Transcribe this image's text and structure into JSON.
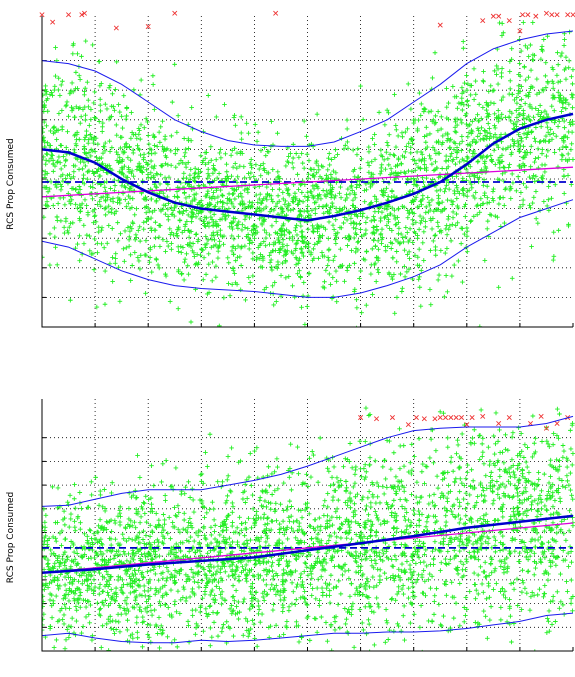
{
  "colors": {
    "inlier": "#22ee22",
    "outlier": "#ee3333",
    "band": "#1a1aee",
    "smooth": "#0000cc",
    "mean": "#0000cc",
    "fit": "#dd00dd"
  },
  "chart_data": [
    {
      "type": "scatter",
      "ylabel": "RCS Prop Consumed",
      "xlim": [
        0,
        10
      ],
      "ylim": [
        0,
        10
      ],
      "grid": true,
      "legend": "none",
      "x_ticks": [
        0,
        1,
        2,
        3,
        4,
        5,
        6,
        7,
        8,
        9,
        10
      ],
      "y_ticks": [
        1,
        2,
        3,
        4,
        5,
        6,
        7,
        8,
        9
      ],
      "point_count": 3000,
      "mean_line": 4.9,
      "fit_line": {
        "x": [
          0,
          10
        ],
        "y": [
          4.4,
          5.4
        ]
      },
      "smooth_curve": {
        "x": [
          0,
          0.5,
          1,
          1.5,
          2,
          2.5,
          3,
          3.5,
          4,
          4.5,
          5,
          5.5,
          6,
          6.5,
          7,
          7.5,
          8,
          8.5,
          9,
          9.5,
          10
        ],
        "y": [
          6.0,
          5.9,
          5.55,
          5.0,
          4.55,
          4.2,
          4.0,
          3.9,
          3.8,
          3.7,
          3.6,
          3.75,
          3.95,
          4.2,
          4.5,
          4.9,
          5.5,
          6.2,
          6.7,
          7.0,
          7.2
        ]
      },
      "upper_band": {
        "x": [
          0,
          0.5,
          1,
          1.5,
          2,
          2.5,
          3,
          3.5,
          4,
          4.5,
          5,
          5.5,
          6,
          6.5,
          7,
          7.5,
          8,
          8.5,
          9,
          9.5,
          10
        ],
        "y": [
          9.0,
          8.9,
          8.65,
          8.2,
          7.6,
          7.0,
          6.6,
          6.3,
          6.15,
          6.1,
          6.1,
          6.25,
          6.6,
          7.0,
          7.6,
          8.2,
          8.9,
          9.4,
          9.7,
          9.9,
          10.0
        ]
      },
      "lower_band": {
        "x": [
          0,
          0.5,
          1,
          1.5,
          2,
          2.5,
          3,
          3.5,
          4,
          4.5,
          5,
          5.5,
          6,
          6.5,
          7,
          7.5,
          8,
          8.5,
          9,
          9.5,
          10
        ],
        "y": [
          2.9,
          2.7,
          2.3,
          1.9,
          1.6,
          1.4,
          1.3,
          1.25,
          1.2,
          1.1,
          1.0,
          1.0,
          1.15,
          1.4,
          1.7,
          2.1,
          2.7,
          3.2,
          3.7,
          4.0,
          4.3
        ]
      },
      "outliers": [
        [
          0.0,
          10.55
        ],
        [
          0.2,
          10.3
        ],
        [
          0.5,
          10.55
        ],
        [
          0.75,
          10.55
        ],
        [
          0.8,
          10.6
        ],
        [
          1.4,
          10.1
        ],
        [
          2.0,
          10.15
        ],
        [
          2.5,
          10.6
        ],
        [
          4.4,
          10.6
        ],
        [
          7.5,
          10.2
        ],
        [
          8.3,
          10.35
        ],
        [
          8.5,
          10.5
        ],
        [
          8.6,
          10.5
        ],
        [
          8.8,
          10.35
        ],
        [
          9.0,
          10.0
        ],
        [
          9.05,
          10.55
        ],
        [
          9.15,
          10.55
        ],
        [
          9.3,
          10.5
        ],
        [
          9.5,
          10.6
        ],
        [
          9.6,
          10.55
        ],
        [
          9.7,
          10.55
        ],
        [
          9.9,
          10.55
        ],
        [
          10.0,
          10.55
        ]
      ]
    },
    {
      "type": "scatter",
      "ylabel": "RCS Prop Consumed",
      "xlim": [
        0,
        10
      ],
      "ylim": [
        0,
        10
      ],
      "grid": true,
      "legend": "none",
      "x_ticks": [
        0,
        1,
        2,
        3,
        4,
        5,
        6,
        7,
        8,
        9,
        10
      ],
      "y_ticks": [
        1,
        2,
        3,
        4,
        5,
        6,
        7,
        8,
        9
      ],
      "point_count": 3000,
      "mean_line": 4.35,
      "fit_line": {
        "x": [
          0,
          10
        ],
        "y": [
          3.3,
          5.4
        ]
      },
      "smooth_curve": {
        "x": [
          0,
          1,
          2,
          3,
          4,
          5,
          6,
          7,
          8,
          9,
          10
        ],
        "y": [
          3.3,
          3.45,
          3.65,
          3.8,
          3.95,
          4.25,
          4.55,
          4.85,
          5.2,
          5.45,
          5.7
        ]
      },
      "upper_band": {
        "x": [
          0,
          0.5,
          1,
          1.5,
          2,
          2.5,
          3,
          3.5,
          4,
          4.5,
          5,
          5.5,
          6,
          6.5,
          7,
          7.5,
          8,
          8.5,
          9,
          9.5,
          10
        ],
        "y": [
          6.1,
          6.15,
          6.4,
          6.65,
          6.8,
          6.8,
          6.8,
          7.0,
          7.2,
          7.45,
          7.8,
          8.2,
          8.6,
          9.0,
          9.3,
          9.4,
          9.45,
          9.45,
          9.45,
          9.6,
          9.9
        ]
      },
      "lower_band": {
        "x": [
          0,
          0.5,
          1,
          1.5,
          2,
          2.5,
          3,
          3.5,
          4,
          4.5,
          5,
          5.5,
          6,
          6.5,
          7,
          7.5,
          8,
          8.5,
          9,
          9.5,
          10
        ],
        "y": [
          0.65,
          0.75,
          0.55,
          0.4,
          0.35,
          0.35,
          0.45,
          0.4,
          0.45,
          0.55,
          0.65,
          0.75,
          0.75,
          0.8,
          0.8,
          0.85,
          0.95,
          1.1,
          1.25,
          1.5,
          1.6
        ]
      },
      "outliers": [
        [
          6.0,
          9.85
        ],
        [
          6.3,
          9.8
        ],
        [
          6.6,
          9.85
        ],
        [
          6.9,
          9.55
        ],
        [
          7.05,
          9.85
        ],
        [
          7.2,
          9.8
        ],
        [
          7.4,
          9.8
        ],
        [
          7.5,
          9.85
        ],
        [
          7.6,
          9.85
        ],
        [
          7.7,
          9.85
        ],
        [
          7.8,
          9.85
        ],
        [
          7.9,
          9.85
        ],
        [
          8.0,
          9.55
        ],
        [
          8.1,
          9.85
        ],
        [
          8.3,
          9.9
        ],
        [
          8.6,
          9.6
        ],
        [
          8.8,
          9.85
        ],
        [
          9.2,
          9.6
        ],
        [
          9.4,
          9.9
        ],
        [
          9.5,
          9.4
        ],
        [
          9.7,
          9.6
        ],
        [
          9.9,
          9.85
        ]
      ]
    }
  ]
}
